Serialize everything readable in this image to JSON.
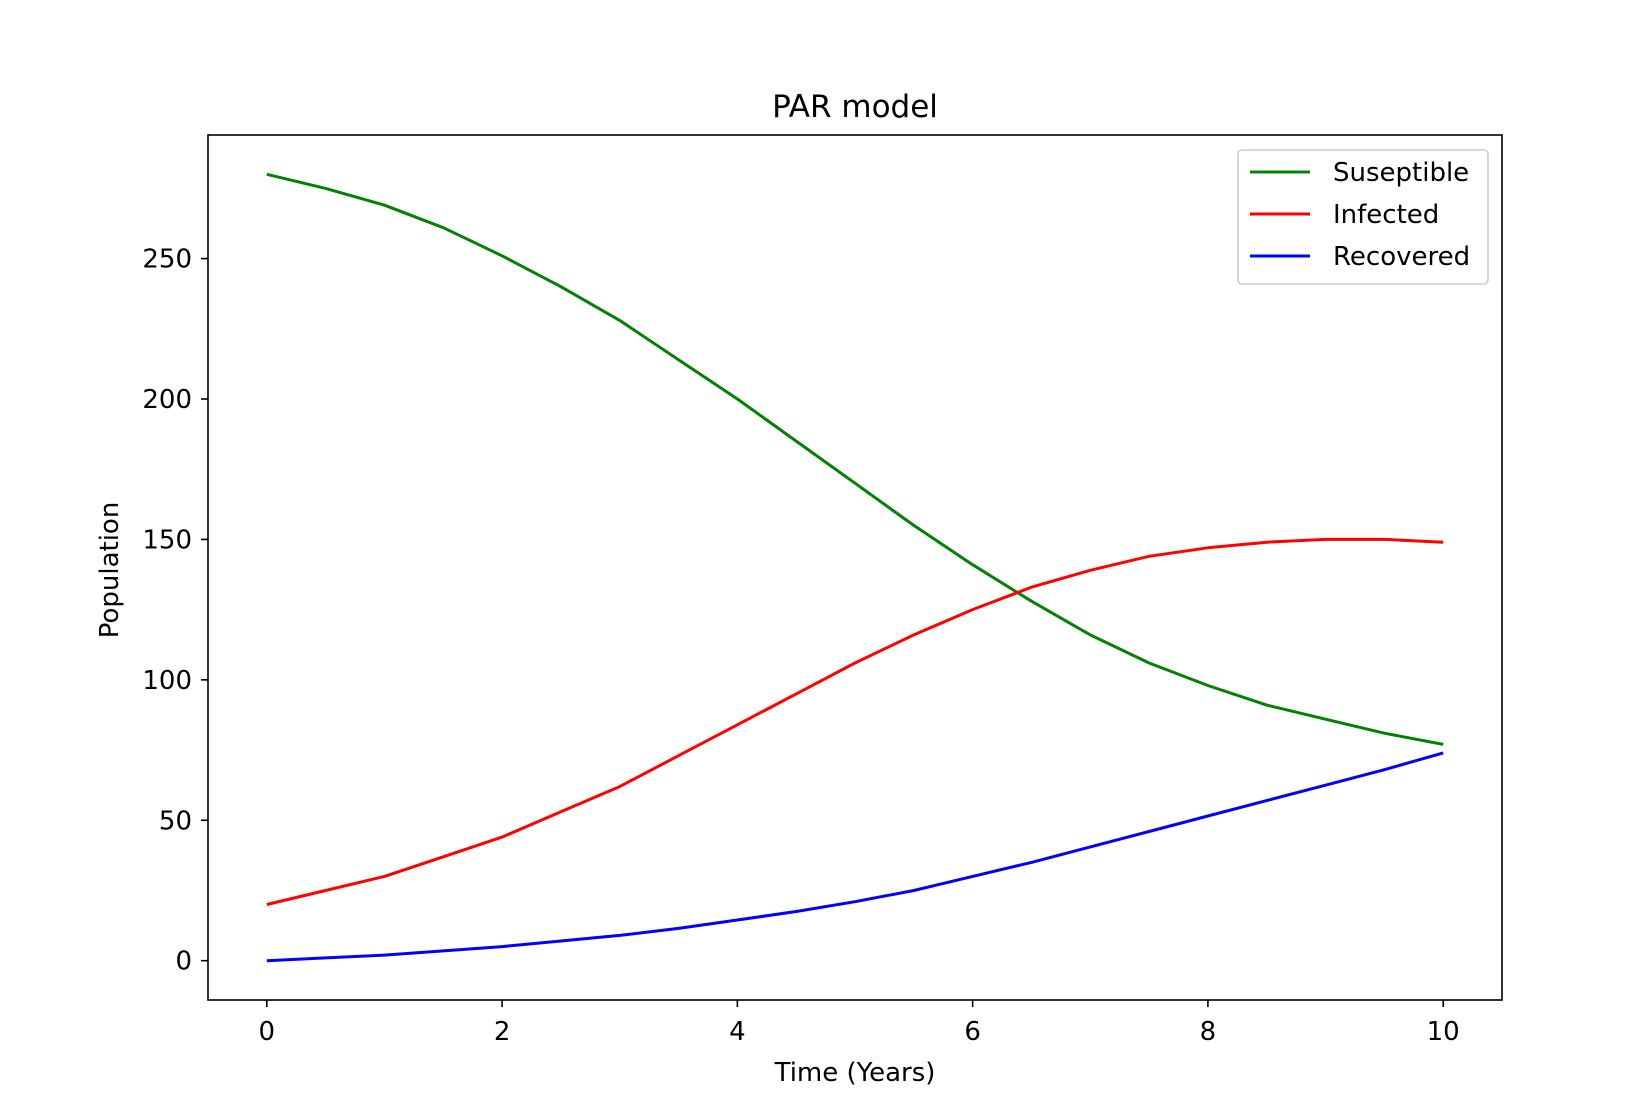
{
  "chart_data": {
    "type": "line",
    "title": "PAR model",
    "xlabel": "Time (Years)",
    "ylabel": "Population",
    "xlim": [
      -0.5,
      10.5
    ],
    "ylim": [
      -14,
      294
    ],
    "xticks": [
      0,
      2,
      4,
      6,
      8,
      10
    ],
    "yticks": [
      0,
      50,
      100,
      150,
      200,
      250
    ],
    "grid": false,
    "legend_position": "upper right",
    "x": [
      0,
      0.5,
      1,
      1.5,
      2,
      2.5,
      3,
      3.5,
      4,
      4.5,
      5,
      5.5,
      6,
      6.5,
      7,
      7.5,
      8,
      8.5,
      9,
      9.5,
      10
    ],
    "series": [
      {
        "name": "Suseptible",
        "color": "#008000",
        "values": [
          280,
          275,
          269,
          261,
          251,
          240,
          228,
          214,
          200,
          185,
          170,
          155,
          141,
          128,
          116,
          106,
          98,
          91,
          86,
          81,
          77
        ]
      },
      {
        "name": "Infected",
        "color": "#ff0000",
        "values": [
          20,
          25,
          30,
          37,
          44,
          53,
          62,
          73,
          84,
          95,
          106,
          116,
          125,
          133,
          139,
          144,
          147,
          149,
          150,
          150,
          149
        ]
      },
      {
        "name": "Recovered",
        "color": "#0000ff",
        "values": [
          0,
          1,
          2,
          3.5,
          5,
          7,
          9,
          11.5,
          14.5,
          17.5,
          21,
          25,
          30,
          35,
          40.5,
          46,
          51.5,
          57,
          62.5,
          68,
          74
        ]
      }
    ]
  }
}
